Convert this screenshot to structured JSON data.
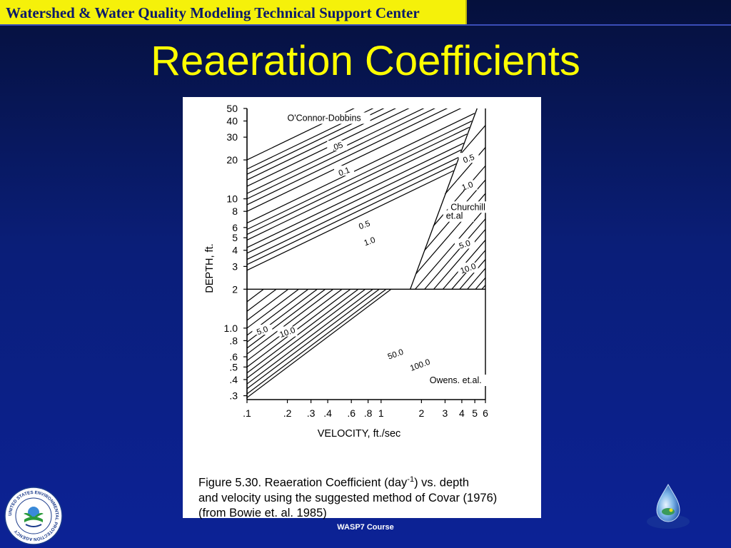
{
  "header": {
    "text": "Watershed & Water Quality Modeling Technical Support Center"
  },
  "title": "Reaeration Coefficients",
  "footer": {
    "text": "WASP7 Course"
  },
  "colors": {
    "header_bg": "#f5f10a",
    "header_text": "#0b1a6a",
    "title": "#ffff00",
    "background": "#0a1e78"
  },
  "icons": {
    "left_logo": "epa-seal-icon",
    "right_logo": "water-drop-icon"
  },
  "seal": {
    "ring_text": "UNITED STATES ENVIRONMENTAL PROTECTION AGENCY"
  },
  "caption": {
    "line1_a": "Figure 5.30.    Reaeration Coefficient  (day",
    "line1_sup": "-1",
    "line1_b": ")  vs. depth",
    "line2": "and velocity using the suggested method of Covar (1976)",
    "line3": "(from Bowie et. al.  1985)"
  },
  "chart_data": {
    "type": "line",
    "title": "",
    "xlabel": "VELOCITY, ft./sec",
    "ylabel": "DEPTH, ft.",
    "x_scale": "log",
    "y_scale": "log",
    "xlim": [
      0.1,
      6
    ],
    "ylim": [
      0.28,
      50
    ],
    "x_ticks": [
      {
        "v": 0.1,
        "label": ".1"
      },
      {
        "v": 0.2,
        "label": ".2"
      },
      {
        "v": 0.3,
        "label": ".3"
      },
      {
        "v": 0.4,
        "label": ".4"
      },
      {
        "v": 0.6,
        "label": ".6"
      },
      {
        "v": 0.8,
        "label": ".8"
      },
      {
        "v": 1,
        "label": "1"
      },
      {
        "v": 2,
        "label": "2"
      },
      {
        "v": 3,
        "label": "3"
      },
      {
        "v": 4,
        "label": "4"
      },
      {
        "v": 5,
        "label": "5"
      },
      {
        "v": 6,
        "label": "6"
      }
    ],
    "y_ticks": [
      {
        "v": 50,
        "label": "50"
      },
      {
        "v": 40,
        "label": "40"
      },
      {
        "v": 30,
        "label": "30"
      },
      {
        "v": 20,
        "label": "20"
      },
      {
        "v": 10,
        "label": "10"
      },
      {
        "v": 8,
        "label": "8"
      },
      {
        "v": 6,
        "label": "6"
      },
      {
        "v": 5,
        "label": "5"
      },
      {
        "v": 4,
        "label": "4"
      },
      {
        "v": 3,
        "label": "3"
      },
      {
        "v": 2,
        "label": "2"
      },
      {
        "v": 1.0,
        "label": "1.0"
      },
      {
        "v": 0.8,
        "label": ".8"
      },
      {
        "v": 0.6,
        "label": ".6"
      },
      {
        "v": 0.5,
        "label": ".5"
      },
      {
        "v": 0.4,
        "label": ".4"
      },
      {
        "v": 0.3,
        "label": ".3"
      }
    ],
    "regions": [
      {
        "text": "O'Connor-Dobbins",
        "x": 0.2,
        "y": 40
      },
      {
        "text": "Churchill",
        "x": 3.3,
        "y": 8.2
      },
      {
        "text": "et.al",
        "x": 3.05,
        "y": 7.0
      },
      {
        "text": "Owens. et.al.",
        "x": 2.3,
        "y": 0.375
      }
    ],
    "boundaries": {
      "depth_divider": 2,
      "churchill_boundary": [
        [
          1.65,
          2
        ],
        [
          5.2,
          52
        ]
      ]
    },
    "families": {
      "oconnor_dobbins": {
        "slope": 0.5,
        "x_range": [
          0.1,
          5.2
        ],
        "y_at_0_1": [
          20,
          17,
          15.5,
          14,
          12.5,
          11,
          10,
          9,
          8,
          6.5,
          5.8,
          5.3,
          4.8,
          4.2,
          3.8,
          3.4,
          3.1,
          2.8
        ]
      },
      "churchill": {
        "slope": 1.2,
        "x_range": [
          1.7,
          6
        ],
        "y_at_6": [
          37,
          25,
          18,
          14,
          11,
          8.5,
          7,
          5.8,
          4.8,
          4.0,
          3.4,
          2.9,
          2.45,
          2.15
        ]
      },
      "owens": {
        "slope": 0.78,
        "x_range": [
          0.1,
          6
        ],
        "y_at_0_1": [
          1.6,
          1.35,
          1.15,
          1.0,
          0.88,
          0.78,
          0.7,
          0.63,
          0.56,
          0.5,
          0.45,
          0.41,
          0.37,
          0.34,
          0.31,
          0.29
        ]
      }
    },
    "contour_labels": [
      {
        "text": ".05",
        "x": 0.47,
        "y": 25.5
      },
      {
        "text": "0.1",
        "x": 0.53,
        "y": 16.3
      },
      {
        "text": "0.5",
        "x": 4.5,
        "y": 20.5
      },
      {
        "text": "1.0",
        "x": 4.4,
        "y": 12.6
      },
      {
        "text": "0.5",
        "x": 0.75,
        "y": 6.3
      },
      {
        "text": "1.0",
        "x": 0.82,
        "y": 4.7
      },
      {
        "text": "5.0",
        "x": 4.2,
        "y": 4.45
      },
      {
        "text": "10.0",
        "x": 4.45,
        "y": 2.9
      },
      {
        "text": "5.0",
        "x": 0.13,
        "y": 0.96
      },
      {
        "text": "10.0",
        "x": 0.2,
        "y": 0.93
      },
      {
        "text": "50.0",
        "x": 1.28,
        "y": 0.63
      },
      {
        "text": "100.0",
        "x": 1.95,
        "y": 0.52
      }
    ]
  }
}
